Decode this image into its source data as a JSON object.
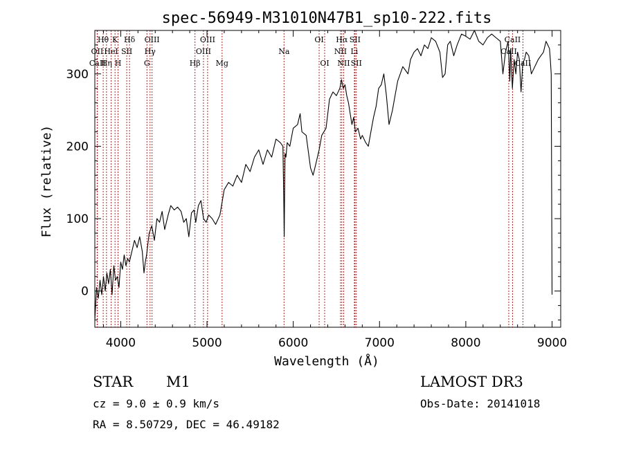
{
  "chart_data": {
    "type": "line",
    "title": "spec-56949-M31010N47B1_sp10-222.fits",
    "xlabel": "Wavelength (Å)",
    "ylabel": "Flux (relative)",
    "xlim": [
      3700,
      9100
    ],
    "ylim": [
      -50,
      360
    ],
    "xticks": [
      4000,
      5000,
      6000,
      7000,
      8000,
      9000
    ],
    "yticks": [
      0,
      100,
      200,
      300
    ],
    "grid": false,
    "series": [
      {
        "name": "spectrum",
        "x": [
          3700,
          3720,
          3740,
          3760,
          3780,
          3800,
          3820,
          3840,
          3860,
          3880,
          3900,
          3920,
          3940,
          3960,
          3980,
          4000,
          4020,
          4040,
          4060,
          4080,
          4100,
          4130,
          4160,
          4190,
          4220,
          4250,
          4270,
          4285,
          4300,
          4330,
          4360,
          4390,
          4420,
          4450,
          4480,
          4510,
          4550,
          4580,
          4620,
          4660,
          4700,
          4730,
          4760,
          4790,
          4820,
          4850,
          4870,
          4900,
          4930,
          4960,
          4990,
          5020,
          5060,
          5100,
          5150,
          5200,
          5250,
          5300,
          5350,
          5400,
          5450,
          5500,
          5550,
          5600,
          5650,
          5700,
          5750,
          5800,
          5850,
          5880,
          5890,
          5895,
          5900,
          5905,
          5915,
          5930,
          5960,
          6000,
          6050,
          6080,
          6100,
          6150,
          6200,
          6230,
          6260,
          6300,
          6330,
          6380,
          6420,
          6460,
          6500,
          6540,
          6560,
          6580,
          6600,
          6620,
          6640,
          6660,
          6680,
          6700,
          6720,
          6750,
          6780,
          6800,
          6840,
          6870,
          6900,
          6930,
          6960,
          6990,
          7020,
          7050,
          7080,
          7110,
          7150,
          7180,
          7210,
          7240,
          7270,
          7300,
          7330,
          7360,
          7400,
          7440,
          7480,
          7520,
          7560,
          7600,
          7650,
          7700,
          7730,
          7760,
          7790,
          7820,
          7860,
          7900,
          7950,
          8000,
          8050,
          8100,
          8150,
          8200,
          8250,
          8300,
          8350,
          8400,
          8430,
          8460,
          8490,
          8500,
          8510,
          8520,
          8540,
          8560,
          8580,
          8600,
          8620,
          8640,
          8660,
          8680,
          8700,
          8730,
          8760,
          8800,
          8840,
          8870,
          8900,
          8930,
          8950,
          8970,
          8980,
          8990,
          8995,
          9000
        ],
        "values": [
          -40,
          5,
          -10,
          15,
          -5,
          20,
          0,
          25,
          10,
          30,
          -5,
          35,
          15,
          20,
          5,
          40,
          30,
          50,
          35,
          45,
          40,
          55,
          70,
          60,
          75,
          55,
          25,
          40,
          50,
          80,
          90,
          70,
          100,
          95,
          110,
          85,
          105,
          118,
          112,
          116,
          110,
          95,
          100,
          75,
          108,
          112,
          95,
          118,
          125,
          100,
          95,
          105,
          100,
          92,
          105,
          140,
          150,
          145,
          160,
          150,
          175,
          165,
          185,
          195,
          175,
          195,
          185,
          210,
          205,
          200,
          130,
          75,
          140,
          190,
          185,
          205,
          200,
          225,
          230,
          245,
          220,
          215,
          170,
          160,
          175,
          195,
          215,
          225,
          265,
          275,
          270,
          280,
          292,
          280,
          285,
          270,
          260,
          245,
          230,
          240,
          220,
          225,
          210,
          215,
          205,
          200,
          220,
          240,
          255,
          280,
          285,
          300,
          270,
          230,
          250,
          270,
          290,
          300,
          310,
          305,
          300,
          320,
          330,
          335,
          325,
          340,
          335,
          350,
          345,
          330,
          295,
          300,
          340,
          345,
          325,
          340,
          355,
          352,
          348,
          360,
          345,
          340,
          350,
          355,
          350,
          345,
          300,
          330,
          345,
          320,
          290,
          335,
          280,
          320,
          300,
          330,
          320,
          275,
          315,
          320,
          330,
          325,
          300,
          310,
          320,
          325,
          330,
          345,
          340,
          335,
          320,
          300,
          150,
          -5
        ]
      }
    ],
    "lines": [
      {
        "label": "Hθ",
        "x": 3797,
        "row": 1
      },
      {
        "label": "OII",
        "x": 3727,
        "row": 2
      },
      {
        "label": "CaII",
        "x": 3730,
        "row": 3
      },
      {
        "label": "Hη",
        "x": 3835,
        "row": 3
      },
      {
        "label": "HeI",
        "x": 3889,
        "row": 2
      },
      {
        "label": "K",
        "x": 3934,
        "row": 1
      },
      {
        "label": "H",
        "x": 3969,
        "row": 3
      },
      {
        "label": "SII",
        "x": 4070,
        "row": 2
      },
      {
        "label": "Hδ",
        "x": 4102,
        "row": 1
      },
      {
        "label": "OIII",
        "x": 4363,
        "row": 1
      },
      {
        "label": "Hγ",
        "x": 4340,
        "row": 2
      },
      {
        "label": "G",
        "x": 4304,
        "row": 3
      },
      {
        "label": "OIII",
        "x": 5007,
        "row": 1
      },
      {
        "label": "OIII",
        "x": 4959,
        "row": 2
      },
      {
        "label": "Hβ",
        "x": 4861,
        "row": 3
      },
      {
        "label": "Mg",
        "x": 5175,
        "row": 3
      },
      {
        "label": "Na",
        "x": 5893,
        "row": 2
      },
      {
        "label": "OI",
        "x": 6300,
        "row": 1
      },
      {
        "label": "OI",
        "x": 6364,
        "row": 3
      },
      {
        "label": "Hα",
        "x": 6563,
        "row": 1
      },
      {
        "label": "SII",
        "x": 6716,
        "row": 1
      },
      {
        "label": "NII",
        "x": 6548,
        "row": 2
      },
      {
        "label": "Li",
        "x": 6708,
        "row": 2
      },
      {
        "label": "NII",
        "x": 6584,
        "row": 3
      },
      {
        "label": "SII",
        "x": 6731,
        "row": 3
      },
      {
        "label": "CaII",
        "x": 8542,
        "row": 1
      },
      {
        "label": "CaII",
        "x": 8498,
        "row": 2
      },
      {
        "label": "CaII",
        "x": 8662,
        "row": 3
      }
    ]
  },
  "info": {
    "object_class": "STAR",
    "subclass": "M1",
    "survey": "LAMOST DR3",
    "cz": "cz = 9.0 ± 0.9 km/s",
    "obs_date": "Obs-Date: 20141018",
    "coords": "RA =   8.50729, DEC =  46.49182"
  },
  "colors": {
    "spectrum": "#000000",
    "line_markers": "#b22222",
    "axes": "#000000"
  }
}
